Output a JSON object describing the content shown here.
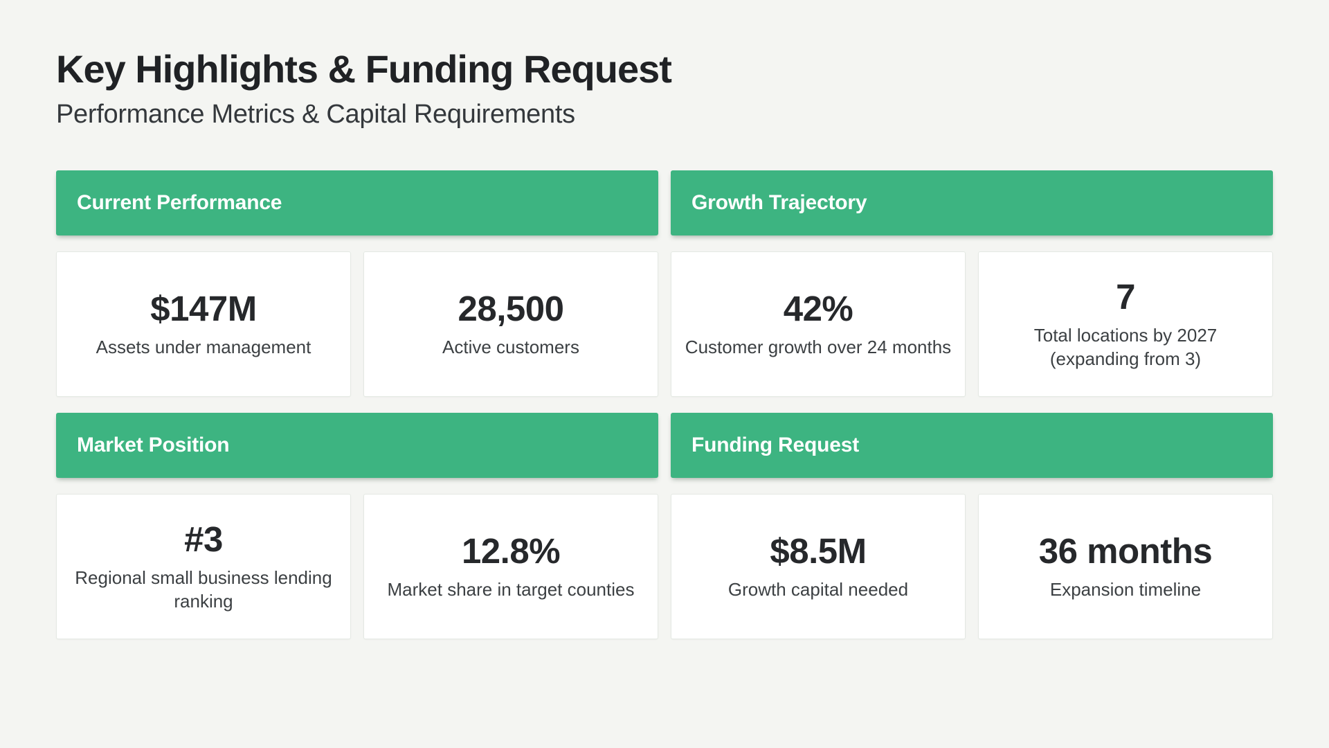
{
  "page": {
    "title": "Key Highlights & Funding Request",
    "subtitle": "Performance Metrics & Capital Requirements"
  },
  "theme": {
    "accent_green": "#3DB481",
    "page_background": "#F4F5F2",
    "card_background": "#FFFFFF",
    "card_border": "#E4E9E3",
    "header_text": "#FFFFFF",
    "value_text": "#26282B",
    "label_text": "#3C4043"
  },
  "sections": [
    {
      "header": "Current Performance",
      "cards": [
        {
          "value": "$147M",
          "label": "Assets under management"
        },
        {
          "value": "28,500",
          "label": "Active customers"
        }
      ]
    },
    {
      "header": "Growth Trajectory",
      "cards": [
        {
          "value": "42%",
          "label": "Customer growth over 24 months"
        },
        {
          "value": "7",
          "label": "Total locations by 2027 (expanding from 3)"
        }
      ]
    },
    {
      "header": "Market Position",
      "cards": [
        {
          "value": "#3",
          "label": "Regional small business lending ranking"
        },
        {
          "value": "12.8%",
          "label": "Market share in target counties"
        }
      ]
    },
    {
      "header": "Funding Request",
      "cards": [
        {
          "value": "$8.5M",
          "label": "Growth capital needed"
        },
        {
          "value": "36 months",
          "label": "Expansion timeline"
        }
      ]
    }
  ]
}
